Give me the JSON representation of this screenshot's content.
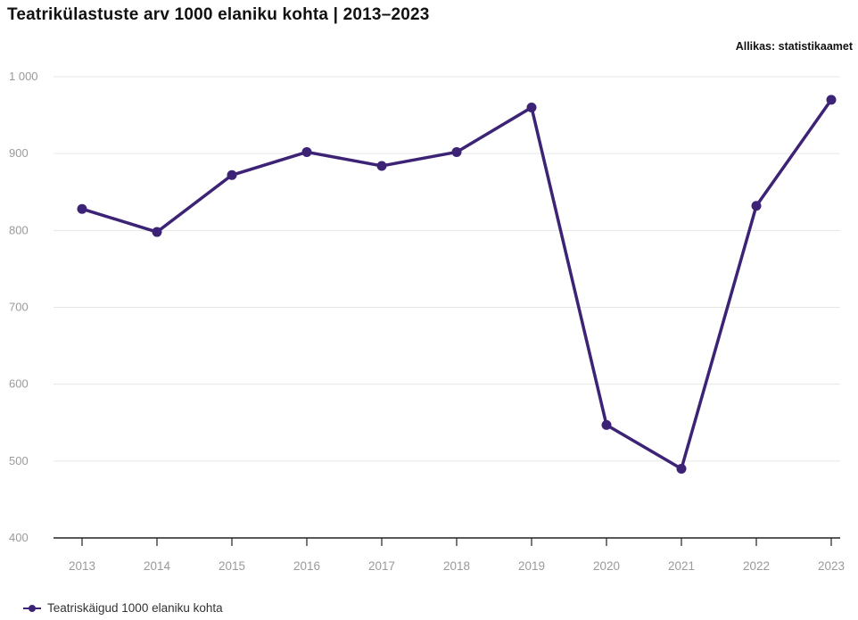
{
  "colors": {
    "series": "#3d2376",
    "grid": "#e6e6e6",
    "axis": "#222222",
    "tick_text": "#9a9a9a"
  },
  "chart_data": {
    "type": "line",
    "title": "Teatrikülastuste arv 1000 elaniku kohta | 2013–2023",
    "source": "Allikas: statistikaamet",
    "x": [
      "2013",
      "2014",
      "2015",
      "2016",
      "2017",
      "2018",
      "2019",
      "2020",
      "2021",
      "2022",
      "2023"
    ],
    "y_ticks": [
      "400",
      "500",
      "600",
      "700",
      "800",
      "900",
      "1 000"
    ],
    "ylim": [
      400,
      1000
    ],
    "grid": true,
    "legend_position": "bottom-left",
    "series": [
      {
        "name": "Teatriskäigud 1000 elaniku kohta",
        "values": [
          828,
          798,
          872,
          902,
          884,
          902,
          960,
          547,
          490,
          832,
          970
        ]
      }
    ]
  }
}
